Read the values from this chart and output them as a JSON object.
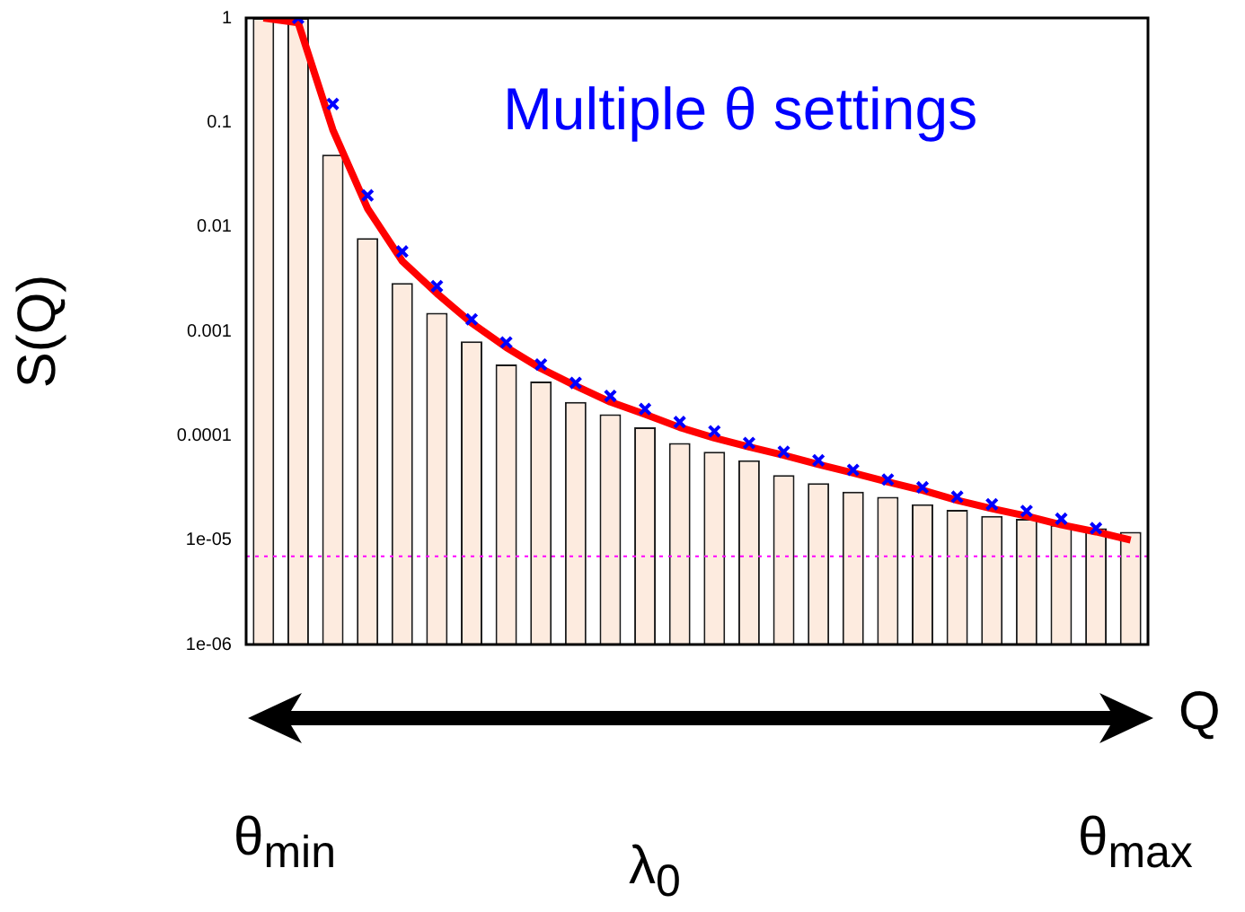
{
  "chart_data": {
    "type": "bar",
    "ylabel": "S(Q)",
    "xlabel": "Q",
    "categories": [
      null,
      null,
      null,
      null,
      null,
      null,
      null,
      null,
      null,
      null,
      null,
      null,
      null,
      null,
      null,
      null,
      null,
      null,
      null,
      null,
      null,
      null,
      null,
      null,
      null,
      null
    ],
    "series": [
      {
        "color": "#fdebdf",
        "values": [
          1,
          1,
          0.049,
          0.0078,
          0.0029,
          0.0015,
          0.0008,
          0.00048,
          0.00033,
          0.00021,
          0.00016,
          0.00012,
          8.5e-05,
          7e-05,
          5.8e-05,
          4.2e-05,
          3.5e-05,
          2.9e-05,
          2.6e-05,
          2.2e-05,
          1.95e-05,
          1.7e-05,
          1.6e-05,
          1.4e-05,
          1.3e-05,
          1.2e-05
        ]
      },
      {
        "type": "line",
        "color": "#ff0000",
        "values": [
          1,
          0.9,
          0.085,
          0.015,
          0.0047,
          0.0023,
          0.0012,
          0.0007,
          0.00044,
          0.0003,
          0.00021,
          0.00016,
          0.00012,
          9.5e-05,
          7.8e-05,
          6.5e-05,
          5.3e-05,
          4.4e-05,
          3.6e-05,
          3e-05,
          2.4e-05,
          2e-05,
          1.7e-05,
          1.4e-05,
          1.2e-05,
          1e-05
        ]
      },
      {
        "type": "scatter",
        "color": "#0000ff",
        "marker": "cross",
        "values": [
          null,
          1,
          0.15,
          0.02,
          0.0058,
          0.0027,
          0.0013,
          0.00078,
          0.00048,
          0.00032,
          0.00024,
          0.00018,
          0.000135,
          0.00011,
          8.5e-05,
          7e-05,
          5.8e-05,
          4.7e-05,
          3.8e-05,
          3.2e-05,
          2.6e-05,
          2.2e-05,
          1.9e-05,
          1.6e-05,
          1.3e-05,
          null
        ]
      }
    ],
    "log": "y",
    "ylim": [
      1e-06,
      1
    ],
    "yticks": [
      1,
      0.1,
      0.01,
      0.001,
      0.0001,
      {
        "value": 1e-05,
        "label": "1e-05"
      },
      {
        "value": 1e-06,
        "label": "1e-06"
      }
    ],
    "ref_lines": [
      {
        "axis": "y",
        "value": 7e-06,
        "color": "#ff00ff",
        "line_style": "dotted"
      }
    ],
    "tick_labels": "y",
    "grid": false,
    "legend": false,
    "annotations": [
      "Multiple θ settings",
      "θ$_{min}$",
      "θ$_{max}$",
      "λ$_{0}$"
    ]
  }
}
